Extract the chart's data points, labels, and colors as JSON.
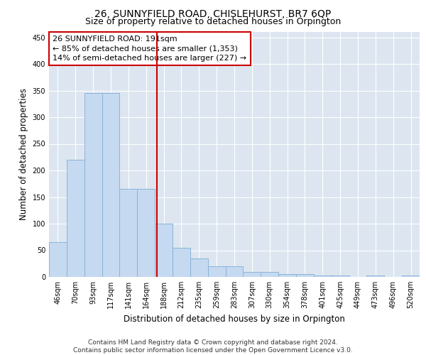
{
  "title1": "26, SUNNYFIELD ROAD, CHISLEHURST, BR7 6QP",
  "title2": "Size of property relative to detached houses in Orpington",
  "xlabel": "Distribution of detached houses by size in Orpington",
  "ylabel": "Number of detached properties",
  "bar_labels": [
    "46sqm",
    "70sqm",
    "93sqm",
    "117sqm",
    "141sqm",
    "164sqm",
    "188sqm",
    "212sqm",
    "235sqm",
    "259sqm",
    "283sqm",
    "307sqm",
    "330sqm",
    "354sqm",
    "378sqm",
    "401sqm",
    "425sqm",
    "449sqm",
    "473sqm",
    "496sqm",
    "520sqm"
  ],
  "bar_values": [
    65,
    220,
    345,
    345,
    165,
    165,
    100,
    55,
    35,
    20,
    20,
    10,
    10,
    5,
    5,
    3,
    3,
    0,
    3,
    0,
    3
  ],
  "bar_color": "#c5d9f0",
  "bar_edgecolor": "#8ab4d8",
  "vline_position": 6.13,
  "annotation_text": "26 SUNNYFIELD ROAD: 191sqm\n← 85% of detached houses are smaller (1,353)\n14% of semi-detached houses are larger (227) →",
  "vline_color": "#cc0000",
  "annotation_box_edgecolor": "#cc0000",
  "annotation_box_facecolor": "#ffffff",
  "ylim": [
    0,
    460
  ],
  "yticks": [
    0,
    50,
    100,
    150,
    200,
    250,
    300,
    350,
    400,
    450
  ],
  "background_color": "#dde6f0",
  "footer_text": "Contains HM Land Registry data © Crown copyright and database right 2024.\nContains public sector information licensed under the Open Government Licence v3.0.",
  "title1_fontsize": 10,
  "title2_fontsize": 9,
  "xlabel_fontsize": 8.5,
  "ylabel_fontsize": 8.5,
  "tick_fontsize": 7,
  "annotation_fontsize": 8,
  "footer_fontsize": 6.5
}
